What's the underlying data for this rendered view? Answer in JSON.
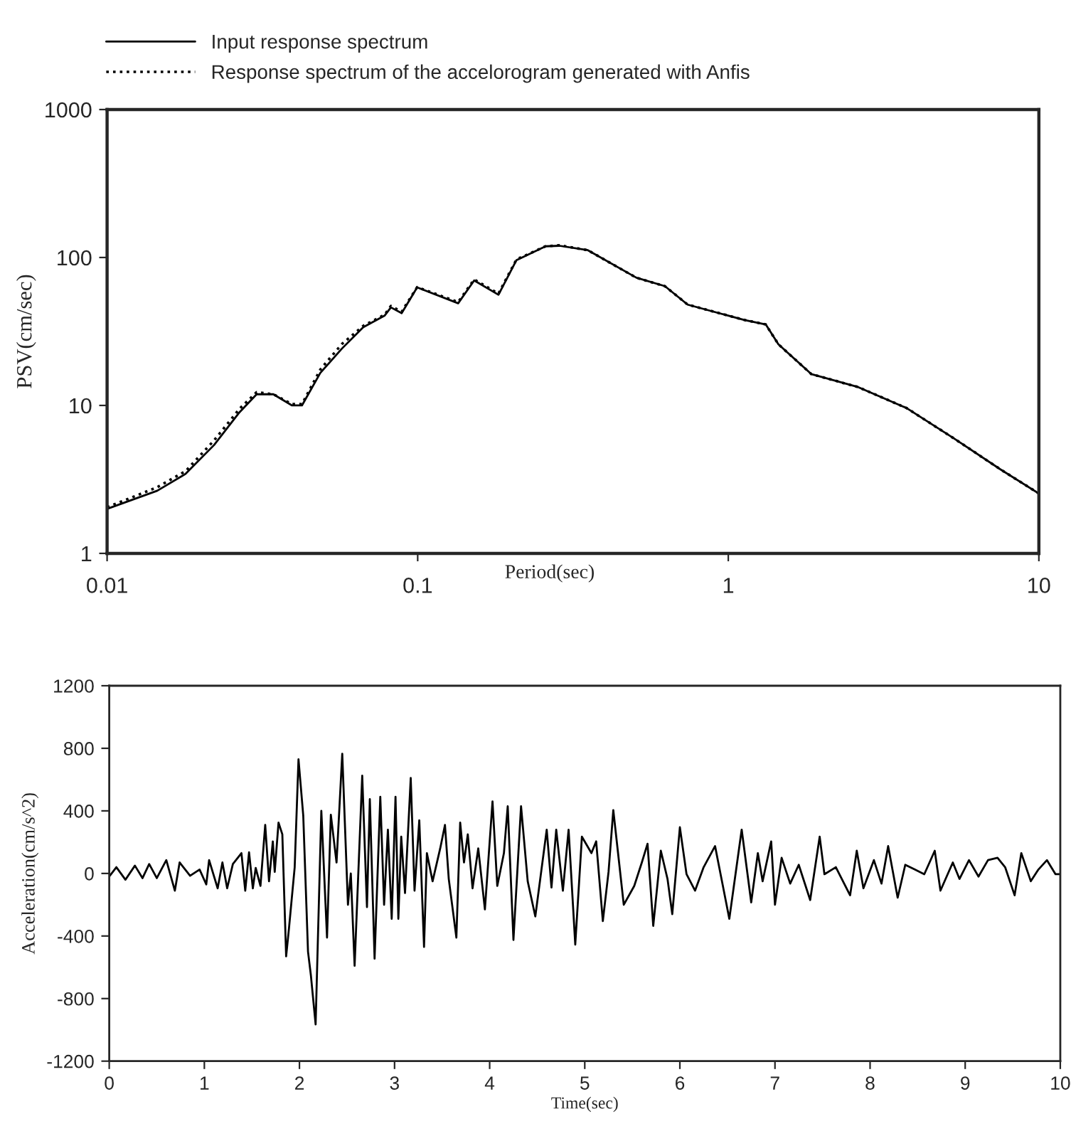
{
  "chart_data": [
    {
      "type": "line",
      "xlabel": "Period(sec)",
      "ylabel": "PSV(cm/sec)",
      "log": "xy",
      "xlim": [
        0.01,
        10
      ],
      "ylim": [
        1,
        1000
      ],
      "xticks": [
        0.01,
        0.1,
        1,
        10
      ],
      "yticks": [
        1,
        10,
        100,
        1000
      ],
      "grid": false,
      "legend": "top",
      "x": [
        0.01,
        0.0145,
        0.0179,
        0.0221,
        0.0267,
        0.0303,
        0.0343,
        0.0394,
        0.0424,
        0.0486,
        0.057,
        0.0668,
        0.0782,
        0.082,
        0.0888,
        0.0996,
        0.135,
        0.152,
        0.182,
        0.208,
        0.258,
        0.286,
        0.353,
        0.506,
        0.625,
        0.74,
        1.127,
        1.32,
        1.45,
        1.85,
        2.62,
        3.75,
        5.32,
        7.53,
        10
      ],
      "series": [
        {
          "name": "Input response spectrum",
          "color": "#000000",
          "line_style": "solid",
          "values": [
            2.0,
            2.65,
            3.45,
            5.4,
            9.0,
            11.9,
            11.9,
            10,
            10,
            16.6,
            24.2,
            33.8,
            40.4,
            46,
            42,
            62.8,
            49,
            70,
            56,
            96,
            119,
            120,
            112,
            73,
            64,
            48,
            37.8,
            35.3,
            25.9,
            16.3,
            13.3,
            9.6,
            6.0,
            3.69,
            2.54
          ]
        },
        {
          "name": "Response spectrum of the accelorogram generated with Anfis",
          "color": "#000000",
          "line_style": "dotted",
          "values": [
            2.05,
            2.8,
            3.6,
            5.8,
            9.5,
            12.3,
            11.9,
            10.2,
            10.2,
            17.5,
            26,
            34.5,
            41,
            47,
            43,
            63,
            50,
            71,
            57,
            97,
            119,
            121,
            112,
            73,
            64,
            48,
            37.8,
            35.3,
            25.9,
            16.3,
            13.3,
            9.6,
            6.0,
            3.69,
            2.54
          ]
        }
      ]
    },
    {
      "type": "line",
      "xlabel": "Time(sec)",
      "ylabel": "Acceleration(cm/s^2)",
      "xlim": [
        0,
        10
      ],
      "ylim": [
        -1200,
        1200
      ],
      "xticks": [
        0,
        1,
        2,
        3,
        4,
        5,
        6,
        7,
        8,
        9,
        10
      ],
      "yticks": [
        -1200,
        -800,
        -400,
        0,
        400,
        800,
        1200
      ],
      "grid": false,
      "legend": false,
      "x": [
        0,
        0.075,
        0.17,
        0.27,
        0.35,
        0.42,
        0.5,
        0.6,
        0.69,
        0.74,
        0.85,
        0.95,
        1.02,
        1.05,
        1.14,
        1.19,
        1.24,
        1.3,
        1.39,
        1.43,
        1.47,
        1.51,
        1.54,
        1.59,
        1.64,
        1.68,
        1.72,
        1.74,
        1.78,
        1.82,
        1.86,
        1.89,
        1.95,
        1.99,
        2.04,
        2.09,
        2.12,
        2.17,
        2.23,
        2.29,
        2.33,
        2.39,
        2.45,
        2.51,
        2.54,
        2.58,
        2.66,
        2.71,
        2.74,
        2.79,
        2.85,
        2.89,
        2.93,
        2.97,
        3.01,
        3.04,
        3.07,
        3.11,
        3.17,
        3.21,
        3.26,
        3.31,
        3.34,
        3.4,
        3.48,
        3.53,
        3.57,
        3.65,
        3.69,
        3.73,
        3.77,
        3.82,
        3.88,
        3.95,
        4.03,
        4.08,
        4.15,
        4.19,
        4.25,
        4.33,
        4.4,
        4.48,
        4.6,
        4.65,
        4.7,
        4.77,
        4.83,
        4.9,
        4.97,
        5.07,
        5.12,
        5.19,
        5.25,
        5.3,
        5.35,
        5.41,
        5.52,
        5.6,
        5.66,
        5.72,
        5.8,
        5.87,
        5.92,
        6.0,
        6.07,
        6.16,
        6.25,
        6.37,
        6.52,
        6.65,
        6.75,
        6.82,
        6.87,
        6.96,
        7.0,
        7.07,
        7.16,
        7.25,
        7.37,
        7.47,
        7.52,
        7.64,
        7.79,
        7.86,
        7.93,
        8.04,
        8.12,
        8.19,
        8.29,
        8.37,
        8.47,
        8.57,
        8.68,
        8.74,
        8.87,
        8.94,
        9.04,
        9.14,
        9.24,
        9.34,
        9.42,
        9.52,
        9.59,
        9.69,
        9.77,
        9.86,
        9.95,
        10.0
      ],
      "series": [
        {
          "color": "#000000",
          "line_style": "solid",
          "values": [
            -20,
            40,
            -40,
            50,
            -30,
            60,
            -30,
            85,
            -110,
            70,
            -15,
            25,
            -70,
            85,
            -95,
            70,
            -95,
            60,
            130,
            -110,
            135,
            -95,
            35,
            -80,
            310,
            -50,
            205,
            10,
            325,
            250,
            -530,
            -350,
            40,
            730,
            370,
            -500,
            -650,
            -965,
            400,
            -410,
            375,
            70,
            765,
            -200,
            0,
            -590,
            625,
            -215,
            475,
            -545,
            490,
            -200,
            280,
            -290,
            490,
            -290,
            235,
            -125,
            610,
            -110,
            340,
            -470,
            130,
            -50,
            160,
            310,
            -35,
            -410,
            325,
            70,
            250,
            -95,
            160,
            -230,
            460,
            -80,
            130,
            430,
            -425,
            430,
            -50,
            -275,
            280,
            -90,
            280,
            -110,
            280,
            -455,
            235,
            130,
            205,
            -305,
            10,
            405,
            130,
            -200,
            -80,
            70,
            190,
            -335,
            145,
            -35,
            -260,
            295,
            -5,
            -110,
            40,
            175,
            -290,
            280,
            -185,
            130,
            -50,
            205,
            -200,
            100,
            -65,
            55,
            -170,
            235,
            -5,
            40,
            -140,
            145,
            -95,
            85,
            -65,
            175,
            -155,
            55,
            25,
            -5,
            145,
            -110,
            70,
            -35,
            85,
            -20,
            85,
            100,
            40,
            -140,
            130,
            -50,
            25,
            85,
            -5,
            -5
          ]
        }
      ]
    }
  ]
}
